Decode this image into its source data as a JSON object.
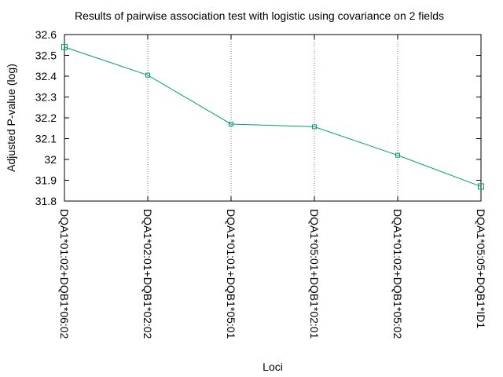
{
  "chart_data": {
    "type": "line",
    "title": "Results of pairwise association test with logistic using covariance on 2 fields",
    "xlabel": "Loci",
    "ylabel": "Adjusted P-value (log)",
    "categories": [
      "DQA1*01:02+DQB1*06:02",
      "DQA1*02:01+DQB1*02:02",
      "DQA1*01:01+DQB1*05:01",
      "DQA1*05:01+DQB1*02:01",
      "DQA1*01:02+DQB1*05:02",
      "DQA1*05:05+DQB1*ID1"
    ],
    "series": [
      {
        "values": [
          32.54,
          32.405,
          32.17,
          32.157,
          32.02,
          31.87
        ]
      }
    ],
    "ylim": [
      31.8,
      32.6
    ],
    "yticks": [
      "32.6",
      "32.5",
      "32.4",
      "32.3",
      "32.2",
      "32.1",
      "32",
      "31.9",
      "31.8"
    ],
    "grid": "vertical dotted at each category",
    "colors": {
      "series": "#009e73"
    }
  }
}
